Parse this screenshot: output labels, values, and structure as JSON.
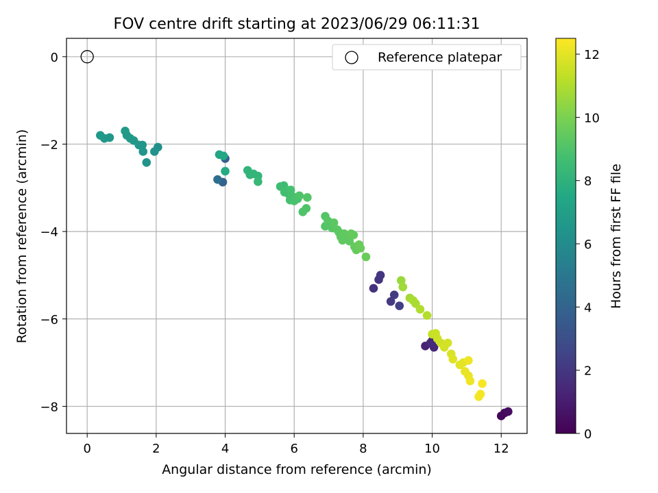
{
  "chart_data": {
    "type": "scatter",
    "title": "FOV centre drift starting at 2023/06/29 06:11:31",
    "xlabel": "Angular distance from reference (arcmin)",
    "ylabel": "Rotation from reference (arcmin)",
    "xlim": [
      -0.6,
      12.75
    ],
    "ylim": [
      -8.62,
      0.42
    ],
    "xticks": [
      0,
      2,
      4,
      6,
      8,
      10,
      12
    ],
    "yticks": [
      0,
      -2,
      -4,
      -6,
      -8
    ],
    "grid": true,
    "legend": {
      "position": "top-right",
      "entries": [
        "Reference platepar"
      ]
    },
    "reference_point": {
      "x": 0,
      "y": 0,
      "label": "Reference platepar"
    },
    "colorbar": {
      "label": "Hours from first FF file",
      "colormap": "viridis",
      "range": [
        0,
        12.5
      ],
      "ticks": [
        0,
        2,
        4,
        6,
        8,
        10,
        12
      ]
    },
    "points": [
      [
        12.0,
        -8.22,
        0.2
      ],
      [
        12.1,
        -8.15,
        0.3
      ],
      [
        12.2,
        -8.12,
        0.4
      ],
      [
        9.8,
        -6.62,
        1.2
      ],
      [
        10.0,
        -6.5,
        1.3
      ],
      [
        10.05,
        -6.65,
        1.4
      ],
      [
        9.95,
        -6.55,
        1.5
      ],
      [
        8.3,
        -5.3,
        1.8
      ],
      [
        8.45,
        -5.1,
        1.9
      ],
      [
        8.5,
        -5.0,
        2.0
      ],
      [
        8.8,
        -5.6,
        2.1
      ],
      [
        8.9,
        -5.45,
        2.2
      ],
      [
        9.05,
        -5.7,
        2.3
      ],
      [
        4.0,
        -2.33,
        3.6
      ],
      [
        3.93,
        -2.87,
        4.0
      ],
      [
        3.78,
        -2.81,
        4.5
      ],
      [
        2.05,
        -2.07,
        6.2
      ],
      [
        1.95,
        -2.17,
        6.3
      ],
      [
        1.72,
        -2.42,
        6.4
      ],
      [
        1.62,
        -2.17,
        6.5
      ],
      [
        1.6,
        -2.02,
        6.5
      ],
      [
        1.5,
        -2.02,
        6.6
      ],
      [
        1.35,
        -1.92,
        6.6
      ],
      [
        1.25,
        -1.87,
        6.7
      ],
      [
        1.15,
        -1.8,
        6.7
      ],
      [
        1.1,
        -1.7,
        6.8
      ],
      [
        0.65,
        -1.85,
        6.5
      ],
      [
        0.5,
        -1.87,
        6.6
      ],
      [
        0.38,
        -1.8,
        6.7
      ],
      [
        3.83,
        -2.24,
        7.4
      ],
      [
        3.95,
        -2.27,
        7.5
      ],
      [
        4.0,
        -2.62,
        7.6
      ],
      [
        4.65,
        -2.6,
        8.1
      ],
      [
        4.72,
        -2.7,
        8.1
      ],
      [
        4.82,
        -2.68,
        8.2
      ],
      [
        4.95,
        -2.73,
        8.2
      ],
      [
        4.95,
        -2.86,
        8.3
      ],
      [
        5.6,
        -2.97,
        8.6
      ],
      [
        5.7,
        -2.95,
        8.6
      ],
      [
        5.72,
        -3.1,
        8.7
      ],
      [
        5.78,
        -3.05,
        8.7
      ],
      [
        5.85,
        -3.15,
        8.7
      ],
      [
        5.9,
        -3.05,
        8.8
      ],
      [
        5.88,
        -3.28,
        8.8
      ],
      [
        5.95,
        -3.2,
        8.8
      ],
      [
        6.0,
        -3.3,
        8.9
      ],
      [
        6.05,
        -3.22,
        8.9
      ],
      [
        6.1,
        -3.25,
        8.9
      ],
      [
        6.15,
        -3.18,
        9.0
      ],
      [
        6.25,
        -3.55,
        9.0
      ],
      [
        6.35,
        -3.47,
        9.0
      ],
      [
        6.38,
        -3.22,
        9.1
      ],
      [
        6.9,
        -3.65,
        9.1
      ],
      [
        6.9,
        -3.88,
        9.1
      ],
      [
        6.98,
        -3.76,
        9.2
      ],
      [
        7.05,
        -3.82,
        9.2
      ],
      [
        7.1,
        -3.92,
        9.2
      ],
      [
        7.15,
        -3.8,
        9.3
      ],
      [
        7.25,
        -3.96,
        9.3
      ],
      [
        7.3,
        -4.02,
        9.3
      ],
      [
        7.35,
        -4.12,
        9.3
      ],
      [
        7.4,
        -4.2,
        9.4
      ],
      [
        7.45,
        -4.05,
        9.4
      ],
      [
        7.55,
        -4.12,
        9.4
      ],
      [
        7.6,
        -4.22,
        9.4
      ],
      [
        7.65,
        -4.05,
        9.5
      ],
      [
        7.72,
        -4.08,
        9.5
      ],
      [
        7.75,
        -4.35,
        9.5
      ],
      [
        7.8,
        -4.42,
        9.5
      ],
      [
        7.88,
        -4.3,
        9.6
      ],
      [
        7.92,
        -4.38,
        9.6
      ],
      [
        8.08,
        -4.58,
        9.6
      ],
      [
        9.1,
        -5.12,
        10.6
      ],
      [
        9.15,
        -5.27,
        10.7
      ],
      [
        9.35,
        -5.52,
        10.8
      ],
      [
        9.45,
        -5.58,
        10.9
      ],
      [
        9.52,
        -5.65,
        10.9
      ],
      [
        9.65,
        -5.78,
        11.0
      ],
      [
        9.85,
        -5.92,
        11.1
      ],
      [
        10.0,
        -6.35,
        11.4
      ],
      [
        10.1,
        -6.33,
        11.5
      ],
      [
        10.15,
        -6.45,
        11.5
      ],
      [
        10.25,
        -6.55,
        11.6
      ],
      [
        10.35,
        -6.65,
        11.7
      ],
      [
        10.45,
        -6.55,
        11.7
      ],
      [
        10.55,
        -6.8,
        11.8
      ],
      [
        10.6,
        -6.92,
        11.9
      ],
      [
        10.8,
        -7.05,
        12.0
      ],
      [
        10.9,
        -7.0,
        12.0
      ],
      [
        10.95,
        -7.2,
        12.1
      ],
      [
        11.05,
        -7.3,
        12.1
      ],
      [
        11.1,
        -7.42,
        12.2
      ],
      [
        11.05,
        -6.95,
        12.2
      ],
      [
        11.35,
        -7.78,
        12.3
      ],
      [
        11.4,
        -7.72,
        12.35
      ],
      [
        11.45,
        -7.48,
        12.4
      ]
    ]
  }
}
